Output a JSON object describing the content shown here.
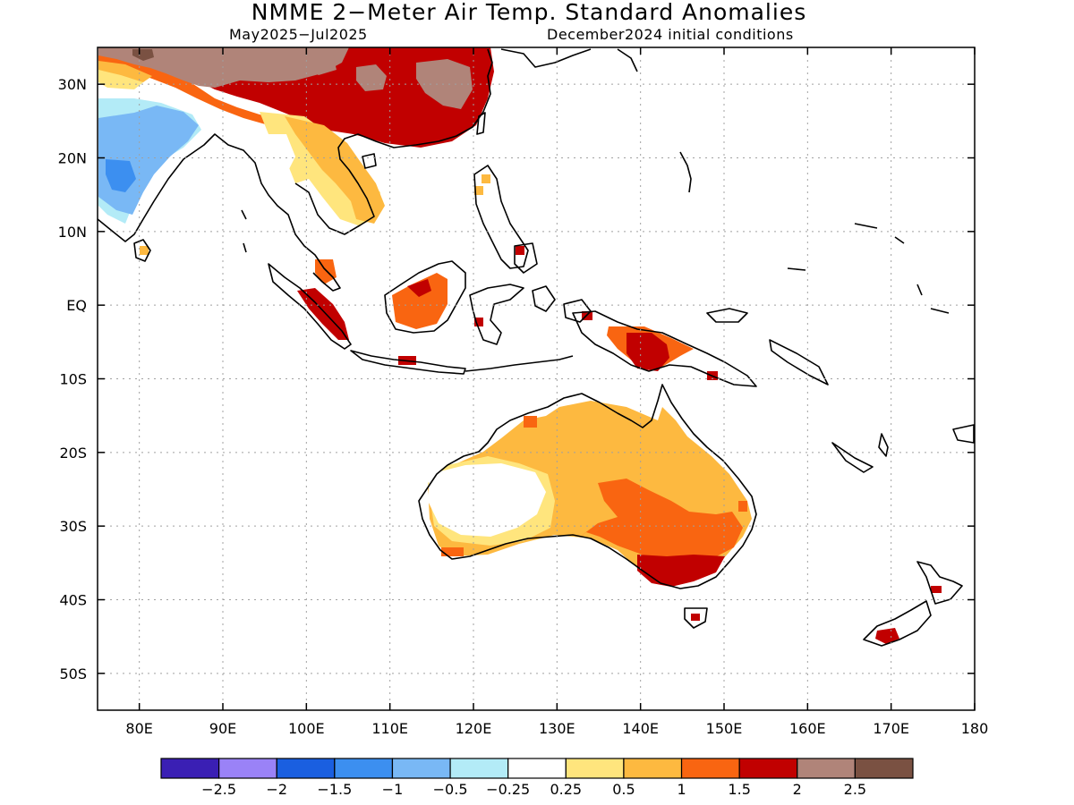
{
  "title": "NMME 2−Meter Air Temp. Standard Anomalies",
  "period": "May2025−Jul2025",
  "init": "December2024 initial conditions",
  "map": {
    "lat_labels": [
      "30N",
      "20N",
      "10N",
      "EQ",
      "10S",
      "20S",
      "30S",
      "40S",
      "50S"
    ],
    "lon_labels": [
      "80E",
      "90E",
      "100E",
      "110E",
      "120E",
      "130E",
      "140E",
      "150E",
      "160E",
      "170E",
      "180"
    ],
    "lon_range": [
      75,
      180
    ],
    "lat_range": [
      -55,
      35
    ],
    "grid": "dotted"
  },
  "legend": {
    "colors": [
      "#3a1fb4",
      "#9a82f7",
      "#1a5fe0",
      "#3c8ff0",
      "#79b8f5",
      "#b3ebf7",
      "#ffffff",
      "#ffe57d",
      "#fdb940",
      "#f96511",
      "#c10000",
      "#b08479",
      "#7a5142"
    ],
    "labels": [
      "−2.5",
      "−2",
      "−1.5",
      "−1",
      "−0.5",
      "−0.25",
      "0.25",
      "0.5",
      "1",
      "1.5",
      "2",
      "2.5"
    ]
  }
}
